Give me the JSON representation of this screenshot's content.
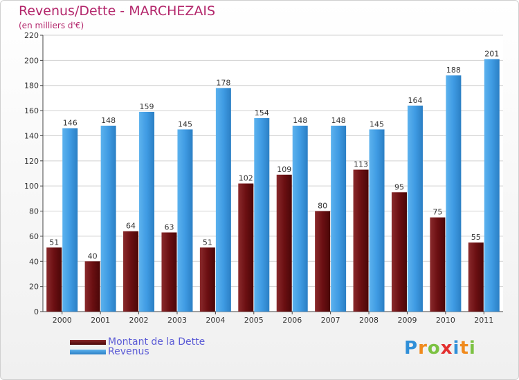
{
  "header": {
    "title": "Revenus/Dette - MARCHEZAIS",
    "subtitle": "(en milliers d'€)"
  },
  "legend": {
    "items": [
      {
        "label": "Montant de la Dette",
        "color": "#6b0f12"
      },
      {
        "label": "Revenus",
        "color": "#4aa3e6"
      }
    ]
  },
  "logo": {
    "text": "Proxiti",
    "letters": [
      "P",
      "r",
      "o",
      "x",
      "i",
      "t",
      "i"
    ],
    "colors": [
      "#2f8fd8",
      "#f08a1d",
      "#7cc242",
      "#e3302f",
      "#2f8fd8",
      "#f08a1d",
      "#7cc242"
    ]
  },
  "chart_data": {
    "type": "bar",
    "categories": [
      "2000",
      "2001",
      "2002",
      "2003",
      "2004",
      "2005",
      "2006",
      "2007",
      "2008",
      "2009",
      "2010",
      "2011"
    ],
    "series": [
      {
        "name": "Montant de la Dette",
        "values": [
          51,
          40,
          64,
          63,
          51,
          102,
          109,
          80,
          113,
          95,
          75,
          55
        ],
        "color": "#6b0f12"
      },
      {
        "name": "Revenus",
        "values": [
          146,
          148,
          159,
          145,
          178,
          154,
          148,
          148,
          145,
          164,
          188,
          201
        ],
        "color": "#4aa3e6"
      }
    ],
    "ylim": [
      0,
      220
    ],
    "yticks": [
      0,
      20,
      40,
      60,
      80,
      100,
      120,
      140,
      160,
      180,
      200,
      220
    ],
    "grid": true,
    "title": "Revenus/Dette - MARCHEZAIS",
    "ylabel": "(en milliers d'€)",
    "legend_position": "bottom-left"
  }
}
